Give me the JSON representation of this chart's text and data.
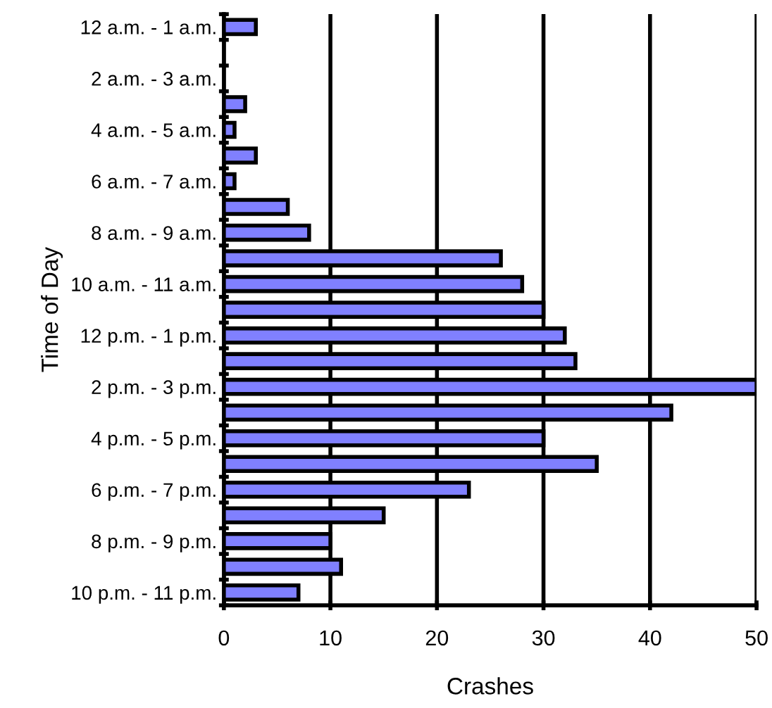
{
  "chart_data": {
    "type": "bar",
    "orientation": "horizontal",
    "xlabel": "Crashes",
    "ylabel": "Time of Day",
    "categories": [
      "12 a.m. - 1 a.m.",
      null,
      "2 a.m. - 3 a.m.",
      null,
      "4 a.m. - 5 a.m.",
      null,
      "6 a.m. - 7 a.m.",
      null,
      "8 a.m. - 9 a.m.",
      null,
      "10 a.m. - 11 a.m.",
      null,
      "12 p.m. - 1 p.m.",
      null,
      "2 p.m. - 3 p.m.",
      null,
      "4 p.m. - 5 p.m.",
      null,
      "6 p.m. - 7 p.m.",
      null,
      "8 p.m. - 9 p.m.",
      null,
      "10 p.m. - 11 p.m."
    ],
    "values": [
      3,
      0,
      0,
      2,
      1,
      3,
      1,
      6,
      8,
      26,
      28,
      30,
      32,
      33,
      50,
      42,
      30,
      35,
      23,
      15,
      10,
      11,
      7
    ],
    "color": "#8080ff",
    "xlim": [
      0,
      50
    ],
    "xticks": [
      0,
      10,
      20,
      30,
      40,
      50
    ],
    "grid": "x",
    "legend": false
  }
}
